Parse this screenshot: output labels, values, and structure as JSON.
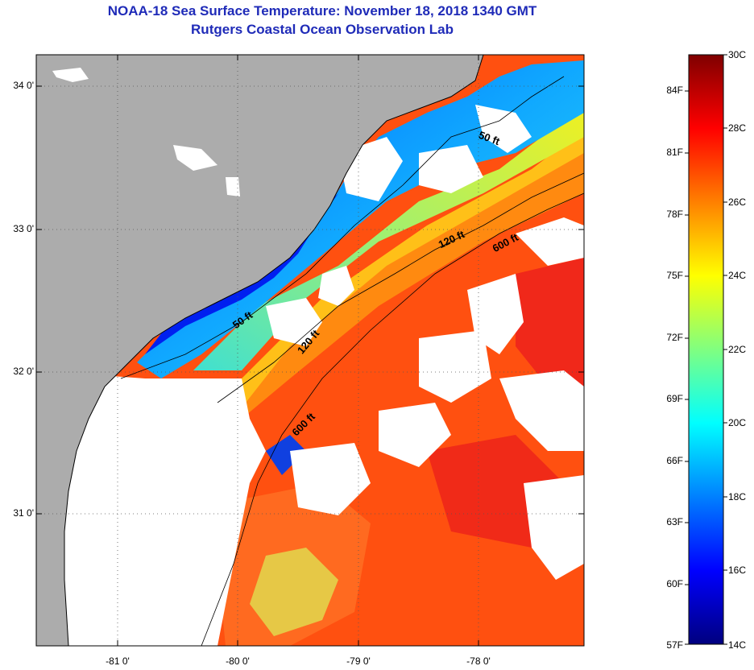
{
  "title": {
    "line1": "NOAA-18 Sea Surface Temperature:  November 18, 2018 1340 GMT",
    "line2": "Rutgers Coastal Ocean Observation Lab"
  },
  "map": {
    "lat_ticks": [
      "34 0'",
      "33 0'",
      "32 0'",
      "31 0'"
    ],
    "lon_ticks": [
      "-81 0'",
      "-80 0'",
      "-79 0'",
      "-78 0'"
    ],
    "isobath_labels": [
      {
        "text": "50 ft"
      },
      {
        "text": "120 ft"
      },
      {
        "text": "600 ft"
      },
      {
        "text": "50 ft"
      },
      {
        "text": "120 ft"
      },
      {
        "text": "600 ft"
      }
    ],
    "colors": {
      "land": "#acacac",
      "cloud": "#ffffff",
      "contour": "#000000",
      "grid": "#555555"
    }
  },
  "colorbar": {
    "fahrenheit": [
      "84F",
      "81F",
      "78F",
      "75F",
      "72F",
      "69F",
      "66F",
      "63F",
      "60F",
      "57F"
    ],
    "celsius": [
      "30C",
      "28C",
      "26C",
      "24C",
      "22C",
      "20C",
      "18C",
      "16C",
      "14C"
    ],
    "stops": [
      "#00007f",
      "#0000ff",
      "#0080ff",
      "#00ffff",
      "#80ff80",
      "#ffff00",
      "#ff8000",
      "#ff0000",
      "#7f0000"
    ]
  }
}
